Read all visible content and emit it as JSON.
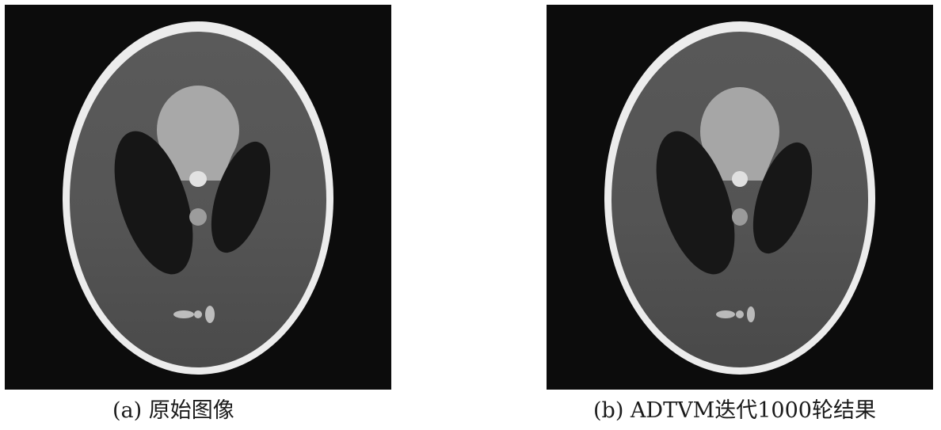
{
  "figure": {
    "panels": [
      {
        "id": "a",
        "caption": "(a) 原始图像"
      },
      {
        "id": "b",
        "caption": "(b) ADTVM迭代1000轮结果"
      }
    ],
    "colors": {
      "background": "#0c0c0c",
      "skull": "#ececec",
      "brain": "#575757",
      "dark_ellipses": "#161616",
      "bright_region": "#a8a8a8",
      "small_features": "#bdbdbd"
    }
  }
}
